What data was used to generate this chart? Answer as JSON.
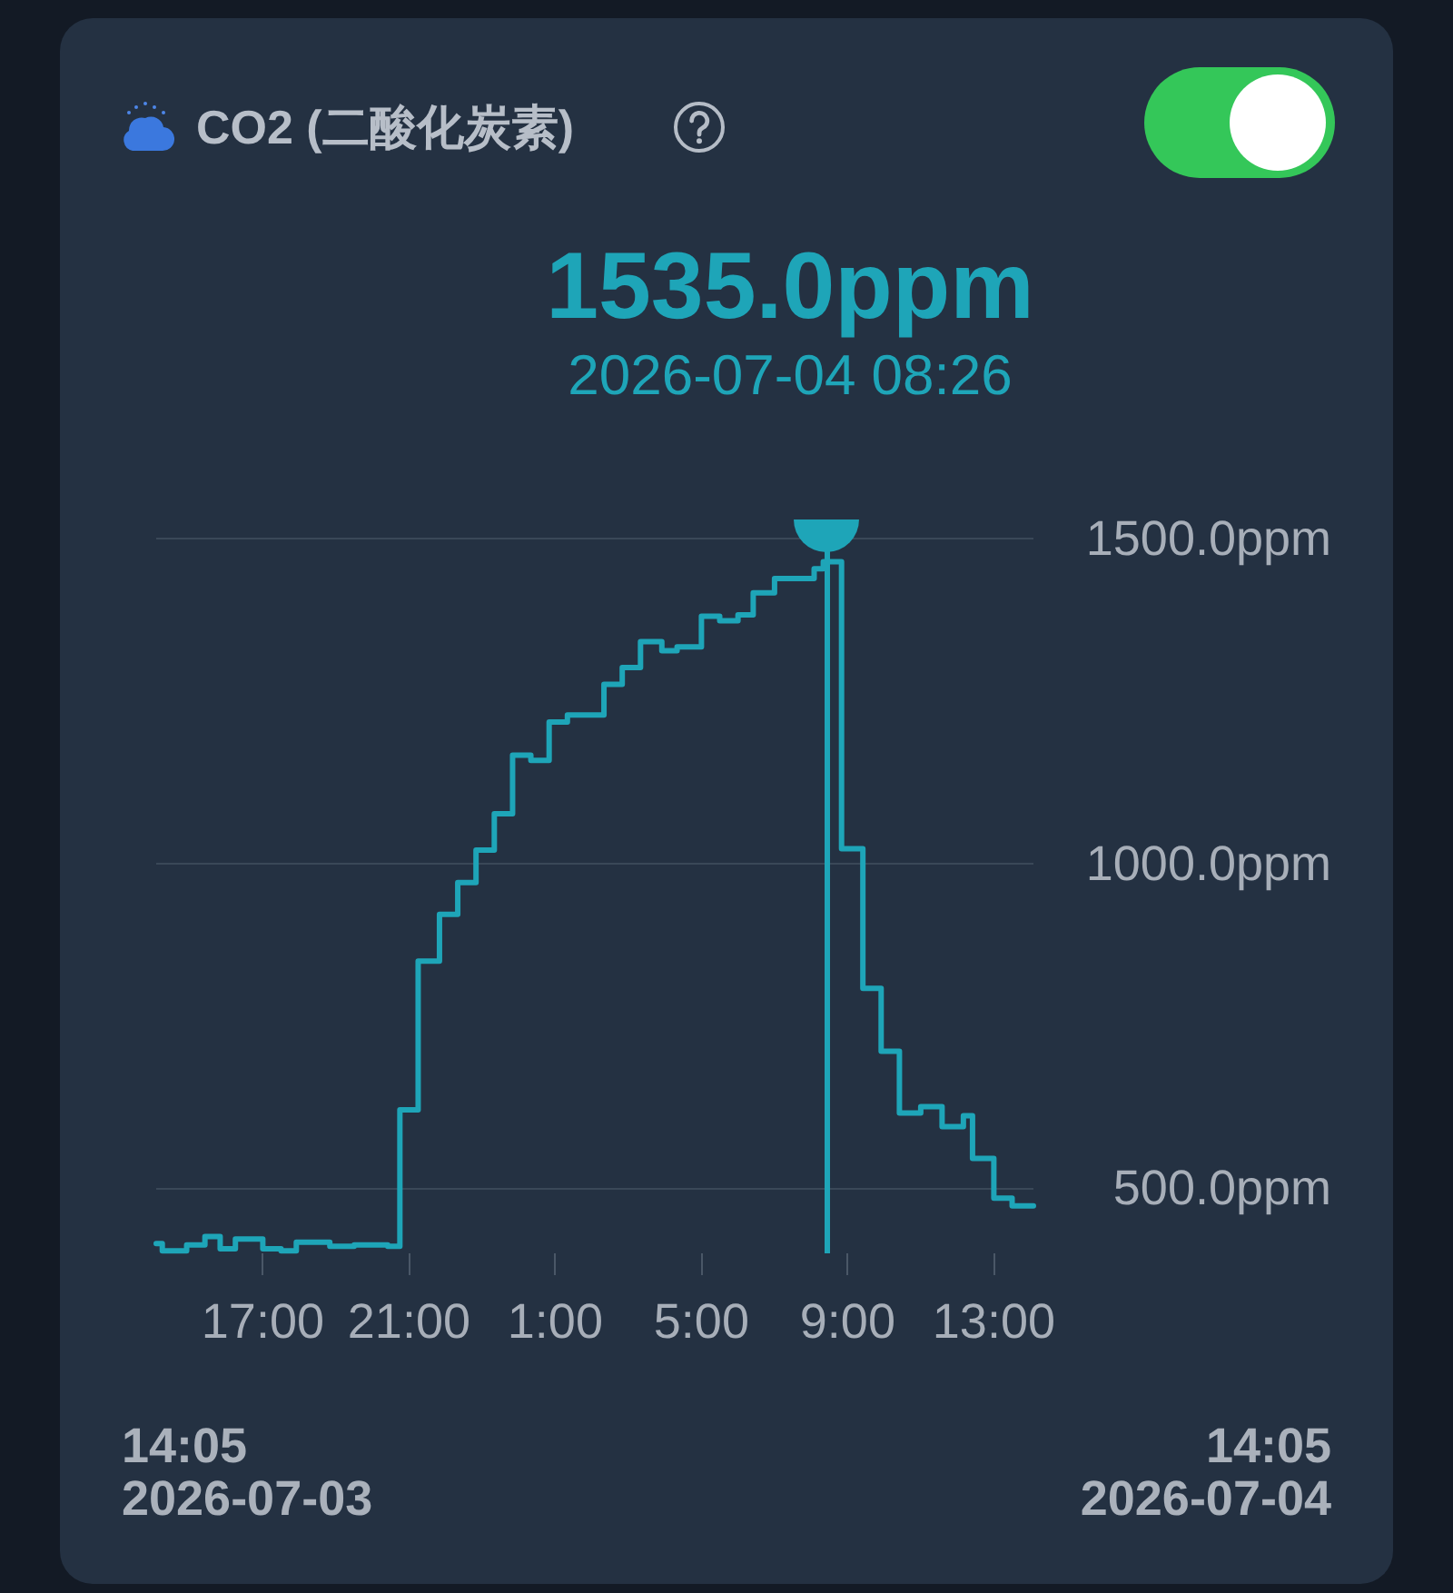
{
  "chart_data": {
    "type": "step",
    "title": "CO2 (二酸化炭素)",
    "annotations": [
      "1535.0ppm",
      "2026-07-04 08:26",
      "14:05\n2026-07-03",
      "14:05\n2026-07-04"
    ],
    "x": [
      "2026-07-03T14:05",
      "2026-07-03T14:15",
      "2026-07-03T14:55",
      "2026-07-03T15:25",
      "2026-07-03T15:50",
      "2026-07-03T16:15",
      "2026-07-03T17:00",
      "2026-07-03T17:30",
      "2026-07-03T17:55",
      "2026-07-03T18:50",
      "2026-07-03T19:30",
      "2026-07-03T20:25",
      "2026-07-03T20:45",
      "2026-07-03T21:15",
      "2026-07-03T21:50",
      "2026-07-03T22:20",
      "2026-07-03T22:50",
      "2026-07-03T23:20",
      "2026-07-03T23:50",
      "2026-07-04T00:20",
      "2026-07-04T00:50",
      "2026-07-04T01:20",
      "2026-07-04T02:20",
      "2026-07-04T02:50",
      "2026-07-04T03:20",
      "2026-07-04T03:55",
      "2026-07-04T04:20",
      "2026-07-04T05:00",
      "2026-07-04T05:30",
      "2026-07-04T06:00",
      "2026-07-04T06:25",
      "2026-07-04T07:00",
      "2026-07-04T08:05",
      "2026-07-04T08:20",
      "2026-07-04T08:50",
      "2026-07-04T09:25",
      "2026-07-04T09:55",
      "2026-07-04T10:25",
      "2026-07-04T11:00",
      "2026-07-04T11:35",
      "2026-07-04T12:10",
      "2026-07-04T12:25",
      "2026-07-04T13:00",
      "2026-07-04T13:30",
      "2026-07-04T14:05"
    ],
    "values": [
      415,
      404,
      413,
      426,
      407,
      422,
      407,
      404,
      417,
      411,
      413,
      411,
      621,
      850,
      922,
      971,
      1021,
      1077,
      1167,
      1159,
      1218,
      1229,
      1276,
      1302,
      1342,
      1328,
      1334,
      1381,
      1374,
      1383,
      1417,
      1439,
      1454,
      1465,
      1023,
      808,
      711,
      616,
      626,
      595,
      612,
      546,
      485,
      473,
      473
    ],
    "color": "#1ea5b8",
    "xlim": [
      "2026-07-03T14:05",
      "2026-07-04T14:05"
    ],
    "xticks": [
      {
        "value": "2026-07-03T17:00",
        "label": "17:00"
      },
      {
        "value": "2026-07-03T21:00",
        "label": "21:00"
      },
      {
        "value": "2026-07-04T01:00",
        "label": "1:00"
      },
      {
        "value": "2026-07-04T05:00",
        "label": "5:00"
      },
      {
        "value": "2026-07-04T09:00",
        "label": "9:00"
      },
      {
        "value": "2026-07-04T13:00",
        "label": "13:00"
      }
    ],
    "ylim": [
      400,
      1530
    ],
    "yticks": [
      {
        "value": 500,
        "label": "500.0ppm"
      },
      {
        "value": 1000,
        "label": "1000.0ppm"
      },
      {
        "value": 1500,
        "label": "1500.0ppm"
      }
    ],
    "grid": "y",
    "marker": "none",
    "line_style": "solid",
    "ref_lines": [
      {
        "axis": "x",
        "value": "2026-07-04T08:26",
        "color": "#1ea5b8"
      }
    ]
  }
}
